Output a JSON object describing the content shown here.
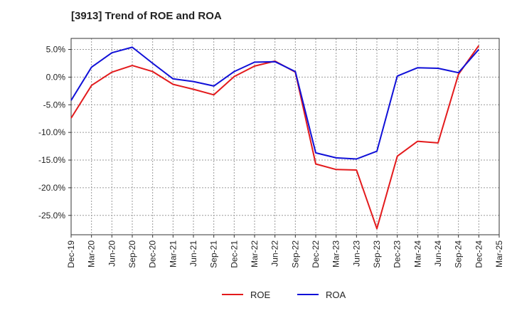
{
  "chart_data": {
    "type": "line",
    "title": "[3913]  Trend of ROE and ROA",
    "xlabel": "",
    "ylabel": "",
    "categories": [
      "Dec-19",
      "Mar-20",
      "Jun-20",
      "Sep-20",
      "Dec-20",
      "Mar-21",
      "Jun-21",
      "Sep-21",
      "Dec-21",
      "Mar-22",
      "Jun-22",
      "Sep-22",
      "Dec-22",
      "Mar-23",
      "Jun-23",
      "Sep-23",
      "Dec-23",
      "Mar-24",
      "Jun-24",
      "Sep-24",
      "Dec-24",
      "Mar-25"
    ],
    "ylim": [
      -28.5,
      7.0
    ],
    "yticks": [
      5.0,
      0.0,
      -5.0,
      -10.0,
      -15.0,
      -20.0,
      -25.0
    ],
    "ytick_labels": [
      "5.0%",
      "0.0%",
      "-5.0%",
      "-10.0%",
      "-15.0%",
      "-20.0%",
      "-25.0%"
    ],
    "grid": true,
    "legend_position": "bottom",
    "series": [
      {
        "name": "ROE",
        "color": "#e31a1c",
        "values": [
          -7.4,
          -1.5,
          0.9,
          2.1,
          1.0,
          -1.3,
          -2.2,
          -3.2,
          0.1,
          2.0,
          2.9,
          0.9,
          -15.7,
          -16.7,
          -16.8,
          -27.4,
          -14.3,
          -11.6,
          -11.9,
          0.5,
          5.7,
          null
        ]
      },
      {
        "name": "ROA",
        "color": "#1010d8",
        "values": [
          -4.2,
          1.8,
          4.4,
          5.4,
          2.5,
          -0.3,
          -0.8,
          -1.6,
          1.0,
          2.7,
          2.8,
          1.0,
          -13.7,
          -14.6,
          -14.8,
          -13.4,
          0.2,
          1.7,
          1.6,
          0.8,
          5.0,
          null
        ]
      }
    ]
  }
}
